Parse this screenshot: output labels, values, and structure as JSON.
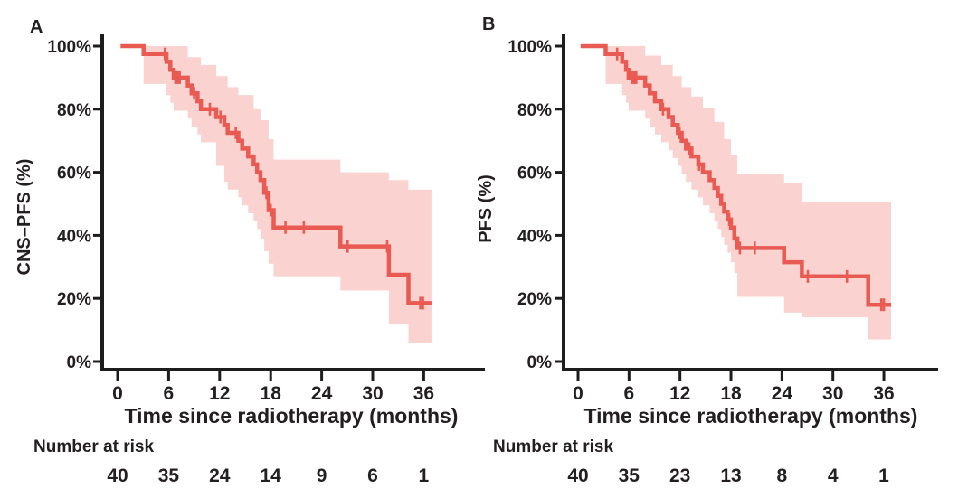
{
  "chart_data": [
    {
      "type": "line",
      "subtype": "kaplan-meier-step-curve-with-confidence-band",
      "panel_label": "A",
      "ylabel": "CNS–PFS (%)",
      "xlabel": "Time since radiotherapy (months)",
      "x_ticks": [
        0,
        6,
        12,
        18,
        24,
        30,
        36
      ],
      "y_tick_labels": [
        "0%",
        "20%",
        "40%",
        "60%",
        "80%",
        "100%"
      ],
      "xlim": [
        0,
        39
      ],
      "ylim": [
        0,
        100
      ],
      "line_color": "#e85a52",
      "band_color": "#fad3d0",
      "axis_color": "#1d1d1d",
      "series": [
        {
          "name": "CNS-PFS",
          "steps": [
            [
              0.35,
              100
            ],
            [
              3.05,
              97.5
            ],
            [
              5.75,
              95
            ],
            [
              6.2,
              92.5
            ],
            [
              6.6,
              90
            ],
            [
              8.25,
              87.5
            ],
            [
              8.7,
              85
            ],
            [
              9.4,
              82.5
            ],
            [
              9.8,
              80
            ],
            [
              11.6,
              77.5
            ],
            [
              12.55,
              75
            ],
            [
              12.95,
              72.5
            ],
            [
              14.2,
              70
            ],
            [
              14.65,
              67.5
            ],
            [
              15.35,
              65
            ],
            [
              16.0,
              62.5
            ],
            [
              16.4,
              60
            ],
            [
              16.8,
              57.5
            ],
            [
              17.25,
              53.5
            ],
            [
              17.75,
              48
            ],
            [
              18.35,
              42.5
            ],
            [
              26.2,
              36.5
            ],
            [
              31.9,
              27.5
            ],
            [
              34.2,
              18.5
            ]
          ],
          "end_time": 36.9,
          "censors": [
            [
              5.55,
              97.5
            ],
            [
              6.8,
              90
            ],
            [
              7.05,
              90
            ],
            [
              7.3,
              90
            ],
            [
              9.0,
              85
            ],
            [
              10.85,
              80
            ],
            [
              12.1,
              77.5
            ],
            [
              13.9,
              72.5
            ],
            [
              17.5,
              53.5
            ],
            [
              18.0,
              48
            ],
            [
              19.75,
              42.5
            ],
            [
              21.9,
              42.5
            ],
            [
              27.05,
              36.5
            ],
            [
              31.7,
              36.5
            ],
            [
              35.6,
              18.5
            ],
            [
              35.9,
              18.5
            ]
          ],
          "ci_upper": [
            [
              3.05,
              100
            ],
            [
              8.25,
              96.5
            ],
            [
              9.8,
              94
            ],
            [
              11.6,
              90.5
            ],
            [
              12.95,
              87
            ],
            [
              14.2,
              84.5
            ],
            [
              16.0,
              80
            ],
            [
              16.8,
              76.5
            ],
            [
              17.75,
              70.5
            ],
            [
              18.35,
              64
            ],
            [
              26.2,
              60
            ],
            [
              31.9,
              57.5
            ],
            [
              34.2,
              54.5
            ]
          ],
          "ci_lower": [
            [
              3.05,
              88
            ],
            [
              5.75,
              84.5
            ],
            [
              6.2,
              82
            ],
            [
              6.6,
              79.5
            ],
            [
              8.25,
              77
            ],
            [
              8.7,
              74.5
            ],
            [
              9.4,
              72
            ],
            [
              9.8,
              69.5
            ],
            [
              11.6,
              62
            ],
            [
              12.55,
              57
            ],
            [
              12.95,
              54.5
            ],
            [
              14.2,
              52
            ],
            [
              14.65,
              49.5
            ],
            [
              15.35,
              47
            ],
            [
              16.0,
              44.5
            ],
            [
              16.4,
              42
            ],
            [
              16.8,
              39
            ],
            [
              17.25,
              35
            ],
            [
              17.75,
              31
            ],
            [
              18.35,
              27
            ],
            [
              26.2,
              22.5
            ],
            [
              31.9,
              12
            ],
            [
              34.2,
              6
            ]
          ]
        }
      ],
      "risk_table": {
        "label": "Number at risk",
        "times": [
          0,
          6,
          12,
          18,
          24,
          30,
          36
        ],
        "counts": [
          40,
          35,
          24,
          14,
          9,
          6,
          1
        ]
      }
    },
    {
      "type": "line",
      "subtype": "kaplan-meier-step-curve-with-confidence-band",
      "panel_label": "B",
      "ylabel": "PFS (%)",
      "xlabel": "Time since radiotherapy (months)",
      "x_ticks": [
        0,
        6,
        12,
        18,
        24,
        30,
        36
      ],
      "y_tick_labels": [
        "0%",
        "20%",
        "40%",
        "60%",
        "80%",
        "100%"
      ],
      "xlim": [
        0,
        39
      ],
      "ylim": [
        0,
        100
      ],
      "line_color": "#e85a52",
      "band_color": "#fad3d0",
      "axis_color": "#1d1d1d",
      "series": [
        {
          "name": "PFS",
          "steps": [
            [
              0.3,
              100
            ],
            [
              3.25,
              97.5
            ],
            [
              5.2,
              95
            ],
            [
              5.65,
              92.5
            ],
            [
              5.95,
              90
            ],
            [
              7.9,
              87.5
            ],
            [
              8.45,
              85
            ],
            [
              9.05,
              82.5
            ],
            [
              9.8,
              80
            ],
            [
              10.65,
              77.5
            ],
            [
              11.15,
              75
            ],
            [
              11.75,
              72.5
            ],
            [
              12.2,
              70
            ],
            [
              12.7,
              67.5
            ],
            [
              13.35,
              65
            ],
            [
              14.15,
              62.5
            ],
            [
              14.7,
              60
            ],
            [
              15.5,
              57.5
            ],
            [
              16.05,
              55
            ],
            [
              16.45,
              52.5
            ],
            [
              16.85,
              50
            ],
            [
              17.2,
              47.5
            ],
            [
              17.6,
              45
            ],
            [
              18.0,
              42.5
            ],
            [
              18.4,
              39
            ],
            [
              18.75,
              36
            ],
            [
              24.25,
              31.5
            ],
            [
              26.35,
              27
            ],
            [
              34.15,
              18
            ]
          ],
          "end_time": 36.85,
          "censors": [
            [
              4.6,
              97.5
            ],
            [
              6.35,
              90
            ],
            [
              6.6,
              90
            ],
            [
              6.85,
              90
            ],
            [
              10.0,
              80
            ],
            [
              11.95,
              72.5
            ],
            [
              13.1,
              67.5
            ],
            [
              14.25,
              62.5
            ],
            [
              17.8,
              45
            ],
            [
              19.05,
              36
            ],
            [
              20.8,
              36
            ],
            [
              27.05,
              27
            ],
            [
              31.65,
              27
            ],
            [
              35.7,
              18
            ],
            [
              36.0,
              18
            ]
          ],
          "ci_upper": [
            [
              3.25,
              100
            ],
            [
              7.9,
              97
            ],
            [
              9.8,
              94
            ],
            [
              11.15,
              90.5
            ],
            [
              12.2,
              87
            ],
            [
              13.35,
              84
            ],
            [
              14.7,
              80.5
            ],
            [
              16.05,
              76
            ],
            [
              17.2,
              70.5
            ],
            [
              18.0,
              65.5
            ],
            [
              18.75,
              59.5
            ],
            [
              24.25,
              56.5
            ],
            [
              26.35,
              50.5
            ]
          ],
          "ci_lower": [
            [
              3.25,
              88
            ],
            [
              5.2,
              84.5
            ],
            [
              5.65,
              82
            ],
            [
              5.95,
              79.5
            ],
            [
              7.9,
              77
            ],
            [
              8.45,
              74.5
            ],
            [
              9.05,
              72
            ],
            [
              9.8,
              69.5
            ],
            [
              10.65,
              67
            ],
            [
              11.15,
              64.5
            ],
            [
              11.75,
              62
            ],
            [
              12.2,
              59.5
            ],
            [
              12.7,
              57
            ],
            [
              13.35,
              54.5
            ],
            [
              14.15,
              52
            ],
            [
              14.7,
              49.5
            ],
            [
              15.5,
              47
            ],
            [
              16.05,
              44.5
            ],
            [
              16.45,
              42
            ],
            [
              16.85,
              39.5
            ],
            [
              17.2,
              37
            ],
            [
              17.6,
              34.5
            ],
            [
              18.0,
              31.5
            ],
            [
              18.4,
              28
            ],
            [
              18.75,
              20.5
            ],
            [
              24.25,
              15.5
            ],
            [
              26.35,
              14
            ],
            [
              34.15,
              7
            ]
          ]
        }
      ],
      "risk_table": {
        "label": "Number at risk",
        "times": [
          0,
          6,
          12,
          18,
          24,
          30,
          36
        ],
        "counts": [
          40,
          35,
          23,
          13,
          8,
          4,
          1
        ]
      }
    }
  ]
}
